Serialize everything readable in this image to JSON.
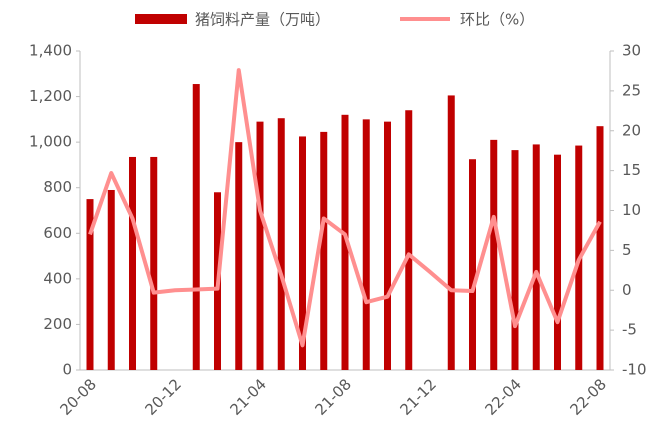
{
  "chart_data": {
    "type": "bar_line",
    "categories": [
      "20-08",
      null,
      null,
      null,
      "20-12",
      null,
      null,
      null,
      "21-04",
      null,
      null,
      null,
      "21-08",
      null,
      null,
      null,
      "21-12",
      null,
      null,
      null,
      "22-04",
      null,
      null,
      null,
      "22-08"
    ],
    "series": [
      {
        "name": "猪饲料产量（万吨）",
        "type": "bar",
        "color": "#c00000",
        "values": [
          750,
          790,
          935,
          935,
          null,
          1255,
          780,
          1000,
          1090,
          1105,
          1025,
          1045,
          1120,
          1100,
          1090,
          1140,
          null,
          1205,
          925,
          1010,
          965,
          990,
          945,
          985,
          1070
        ]
      },
      {
        "name": "环比（%）",
        "type": "line",
        "axis": "y2",
        "color": "#ff8f8f",
        "values": [
          7,
          14.7,
          9,
          -0.3,
          0,
          0.1,
          0.2,
          27.6,
          10,
          1.9,
          -6.9,
          9,
          7,
          -1.5,
          -0.8,
          4.5,
          2.3,
          0,
          -0.1,
          9.2,
          -4.5,
          2.3,
          -4,
          3.8,
          8.6
        ]
      }
    ],
    "ylim": [
      0,
      1400
    ],
    "yticks": [
      0,
      200,
      400,
      600,
      800,
      {
        "value": 1000,
        "label": "1,000"
      },
      {
        "value": 1200,
        "label": "1,200"
      },
      {
        "value": 1400,
        "label": "1,400"
      }
    ],
    "y2lim": [
      -10,
      30
    ],
    "y2ticks": [
      -10,
      -5,
      0,
      5,
      10,
      15,
      20,
      25,
      30
    ],
    "legend": "top"
  }
}
